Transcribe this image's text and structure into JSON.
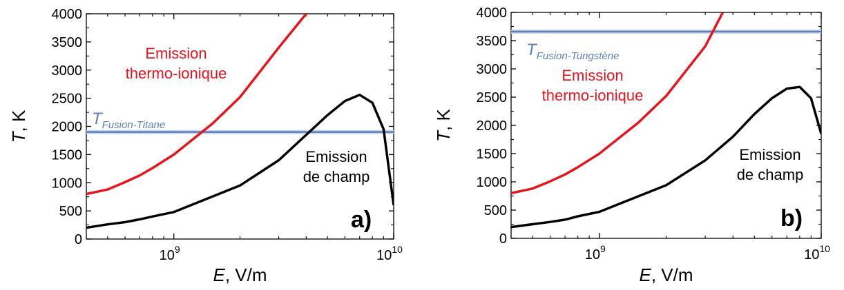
{
  "chart_data": [
    {
      "type": "line",
      "panel_label": "a)",
      "xlabel_var": "E",
      "xlabel_unit": ", V/m",
      "ylabel_var": "T",
      "ylabel_unit": ", K",
      "xscale": "log",
      "xlim": [
        400000000.0,
        10000000000.0
      ],
      "ylim": [
        0,
        4000
      ],
      "yticks": [
        0,
        500,
        1000,
        1500,
        2000,
        2500,
        3000,
        3500,
        4000
      ],
      "xticks": [
        {
          "value": 1000000000.0,
          "base": "10",
          "exp": "9"
        },
        {
          "value": 10000000000.0,
          "base": "10",
          "exp": "10"
        }
      ],
      "grid": false,
      "series": [
        {
          "color": "#e8141c",
          "x": [
            400000000.0,
            500000000.0,
            600000000.0,
            700000000.0,
            800000000.0,
            1000000000.0,
            1500000000.0,
            2000000000.0,
            3000000000.0,
            4000000000.0
          ],
          "y": [
            800,
            880,
            1010,
            1130,
            1260,
            1500,
            2050,
            2520,
            3400,
            4000
          ]
        },
        {
          "color": "#000000",
          "x": [
            400000000.0,
            500000000.0,
            600000000.0,
            700000000.0,
            800000000.0,
            1000000000.0,
            2000000000.0,
            3000000000.0,
            5000000000.0,
            6000000000.0,
            7000000000.0,
            8000000000.0,
            9000000000.0,
            10000000000.0
          ],
          "y": [
            200,
            260,
            300,
            350,
            400,
            480,
            950,
            1400,
            2200,
            2450,
            2560,
            2420,
            1950,
            600
          ]
        }
      ],
      "hlines": [
        {
          "y": 1900,
          "color": "#5b7fbd",
          "label_main": "T",
          "label_sub": "Fusion-Titane"
        }
      ],
      "annotations": [
        {
          "lines": [
            "Emission",
            "thermo-ionique"
          ],
          "color": "#e8141c"
        },
        {
          "lines": [
            "Emission",
            "de champ"
          ],
          "color": "#000000"
        }
      ]
    },
    {
      "type": "line",
      "panel_label": "b)",
      "xlabel_var": "E",
      "xlabel_unit": ", V/m",
      "ylabel_var": "T",
      "ylabel_unit": ", K",
      "xscale": "log",
      "xlim": [
        400000000.0,
        10000000000.0
      ],
      "ylim": [
        0,
        4000
      ],
      "yticks": [
        0,
        500,
        1000,
        1500,
        2000,
        2500,
        3000,
        3500,
        4000
      ],
      "xticks": [
        {
          "value": 1000000000.0,
          "base": "10",
          "exp": "9"
        },
        {
          "value": 10000000000.0,
          "base": "10",
          "exp": "10"
        }
      ],
      "grid": false,
      "series": [
        {
          "color": "#e8141c",
          "x": [
            400000000.0,
            500000000.0,
            600000000.0,
            700000000.0,
            800000000.0,
            1000000000.0,
            1500000000.0,
            2000000000.0,
            3000000000.0,
            3600000000.0
          ],
          "y": [
            800,
            880,
            1010,
            1130,
            1260,
            1500,
            2050,
            2520,
            3400,
            4000
          ]
        },
        {
          "color": "#000000",
          "x": [
            400000000.0,
            500000000.0,
            600000000.0,
            700000000.0,
            800000000.0,
            1000000000.0,
            2000000000.0,
            3000000000.0,
            4000000000.0,
            5000000000.0,
            6000000000.0,
            7000000000.0,
            8000000000.0,
            9000000000.0,
            10000000000.0
          ],
          "y": [
            200,
            250,
            290,
            330,
            390,
            470,
            940,
            1380,
            1800,
            2200,
            2480,
            2650,
            2680,
            2480,
            1850
          ]
        }
      ],
      "hlines": [
        {
          "y": 3660,
          "color": "#5b7fbd",
          "label_main": "T",
          "label_sub": "Fusion-Tungstène"
        }
      ],
      "annotations": [
        {
          "lines": [
            "Emission",
            "thermo-ionique"
          ],
          "color": "#e8141c"
        },
        {
          "lines": [
            "Emission",
            "de champ"
          ],
          "color": "#000000"
        }
      ]
    }
  ]
}
